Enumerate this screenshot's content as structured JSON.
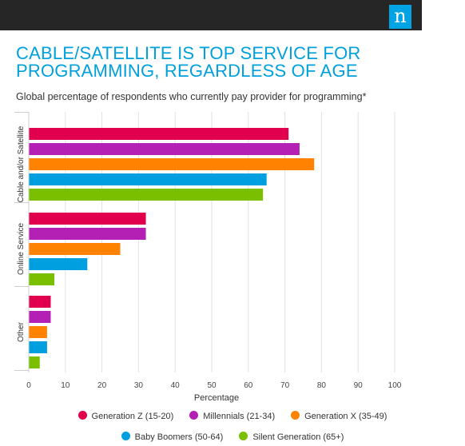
{
  "header": {
    "logo_letter": "n"
  },
  "title": "CABLE/SATELLITE IS TOP SERVICE FOR PROGRAMMING, REGARDLESS OF AGE",
  "subtitle": "Global percentage of respondents who currently pay provider for programming*",
  "chart_data": {
    "type": "bar",
    "orientation": "horizontal",
    "categories": [
      "Cable and/or Satellite",
      "Online Service",
      "Other"
    ],
    "series": [
      {
        "name": "Generation Z (15-20)",
        "color": "#e0004d",
        "values": [
          71,
          32,
          6
        ]
      },
      {
        "name": "Millennials (21-34)",
        "color": "#b41fb4",
        "values": [
          74,
          32,
          6
        ]
      },
      {
        "name": "Generation X (35-49)",
        "color": "#ff8200",
        "values": [
          78,
          25,
          5
        ]
      },
      {
        "name": "Baby Boomers (50-64)",
        "color": "#00a0e0",
        "values": [
          65,
          16,
          5
        ]
      },
      {
        "name": "Silent Generation (65+)",
        "color": "#7ac000",
        "values": [
          64,
          7,
          3
        ]
      }
    ],
    "xlabel": "Percentage",
    "xlim": [
      0,
      100
    ],
    "xticks": [
      "0",
      "10",
      "20",
      "30",
      "40",
      "50",
      "60",
      "70",
      "80",
      "90",
      "100"
    ],
    "grid": true,
    "legend_position": "bottom"
  }
}
